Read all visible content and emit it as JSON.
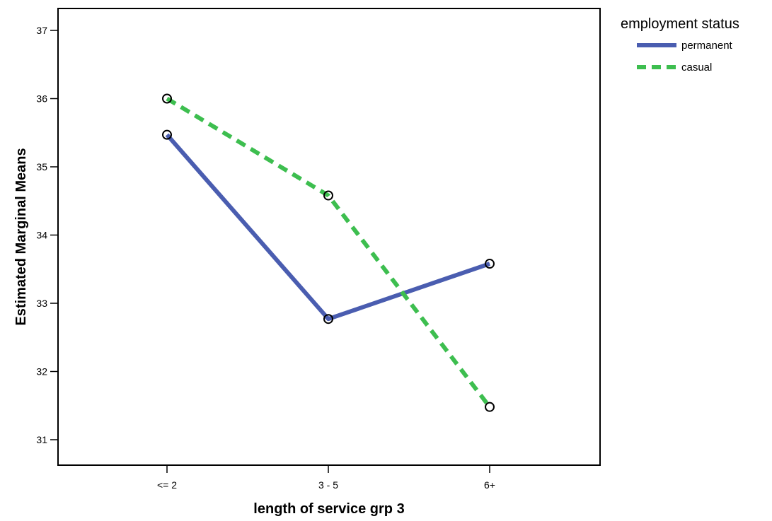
{
  "chart_data": {
    "type": "line",
    "xlabel": "length of service grp 3",
    "ylabel": "Estimated Marginal Means",
    "categories": [
      "<= 2",
      "3 - 5",
      "6+"
    ],
    "ylim": [
      30.8,
      37.3
    ],
    "yticks": [
      31,
      32,
      33,
      34,
      35,
      36,
      37
    ],
    "grid": false,
    "legend": {
      "title": "employment status",
      "placement": "outside-top-right"
    },
    "series": [
      {
        "name": "permanent",
        "values": [
          35.47,
          32.77,
          33.58
        ],
        "color": "#4A5DB0",
        "style": "solid"
      },
      {
        "name": "casual",
        "values": [
          36.0,
          34.58,
          31.48
        ],
        "color": "#3DBE4F",
        "style": "dashed"
      }
    ]
  }
}
